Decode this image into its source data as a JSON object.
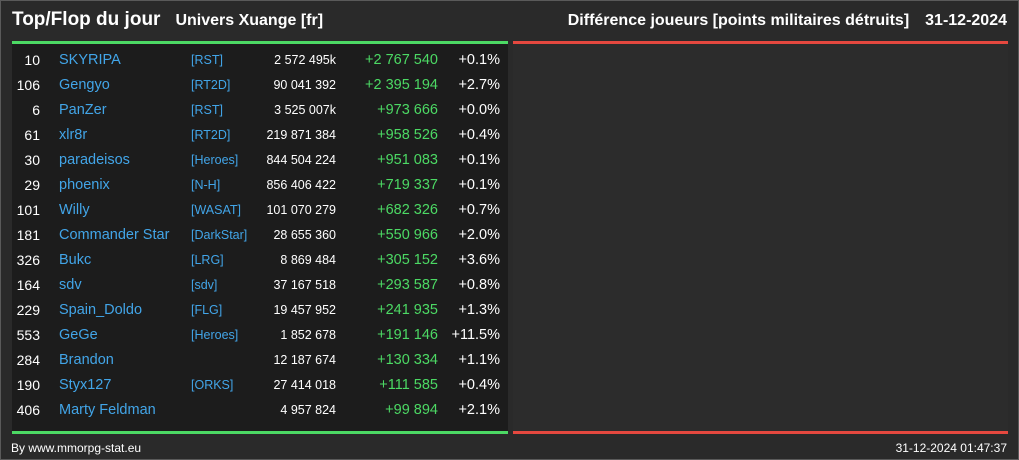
{
  "header": {
    "title": "Top/Flop du jour",
    "univers": "Univers Xuange [fr]",
    "metric": "Différence joueurs [points militaires détruits]",
    "date": "31-12-2024"
  },
  "colors": {
    "positive": "#4cd964",
    "negative": "#e5483f",
    "link": "#42a5e8"
  },
  "rows": [
    {
      "rank": "10",
      "name": "SKYRIPA",
      "alliance": "[RST]",
      "points": "2 572 495k",
      "diff": "+2 767 540",
      "pct": "+0.1%"
    },
    {
      "rank": "106",
      "name": "Gengyo",
      "alliance": "[RT2D]",
      "points": "90 041 392",
      "diff": "+2 395 194",
      "pct": "+2.7%"
    },
    {
      "rank": "6",
      "name": "PanZer",
      "alliance": "[RST]",
      "points": "3 525 007k",
      "diff": "+973 666",
      "pct": "+0.0%"
    },
    {
      "rank": "61",
      "name": "xlr8r",
      "alliance": "[RT2D]",
      "points": "219 871 384",
      "diff": "+958 526",
      "pct": "+0.4%"
    },
    {
      "rank": "30",
      "name": "paradeisos",
      "alliance": "[Heroes]",
      "points": "844 504 224",
      "diff": "+951 083",
      "pct": "+0.1%"
    },
    {
      "rank": "29",
      "name": "phoenix",
      "alliance": "[N-H]",
      "points": "856 406 422",
      "diff": "+719 337",
      "pct": "+0.1%"
    },
    {
      "rank": "101",
      "name": "Willy",
      "alliance": "[WASAT]",
      "points": "101 070 279",
      "diff": "+682 326",
      "pct": "+0.7%"
    },
    {
      "rank": "181",
      "name": "Commander Star",
      "alliance": "[DarkStar]",
      "points": "28 655 360",
      "diff": "+550 966",
      "pct": "+2.0%"
    },
    {
      "rank": "326",
      "name": "Bukc",
      "alliance": "[LRG]",
      "points": "8 869 484",
      "diff": "+305 152",
      "pct": "+3.6%"
    },
    {
      "rank": "164",
      "name": "sdv",
      "alliance": "[sdv]",
      "points": "37 167 518",
      "diff": "+293 587",
      "pct": "+0.8%"
    },
    {
      "rank": "229",
      "name": "Spain_Doldo",
      "alliance": "[FLG]",
      "points": "19 457 952",
      "diff": "+241 935",
      "pct": "+1.3%"
    },
    {
      "rank": "553",
      "name": "GeGe",
      "alliance": "[Heroes]",
      "points": "1 852 678",
      "diff": "+191 146",
      "pct": "+11.5%"
    },
    {
      "rank": "284",
      "name": "Brandon",
      "alliance": "",
      "points": "12 187 674",
      "diff": "+130 334",
      "pct": "+1.1%"
    },
    {
      "rank": "190",
      "name": "Styx127",
      "alliance": "[ORKS]",
      "points": "27 414 018",
      "diff": "+111 585",
      "pct": "+0.4%"
    },
    {
      "rank": "406",
      "name": "Marty Feldman",
      "alliance": "",
      "points": "4 957 824",
      "diff": "+99 894",
      "pct": "+2.1%"
    }
  ],
  "footer": {
    "source": "By www.mmorpg-stat.eu",
    "timestamp": "31-12-2024 01:47:37"
  }
}
